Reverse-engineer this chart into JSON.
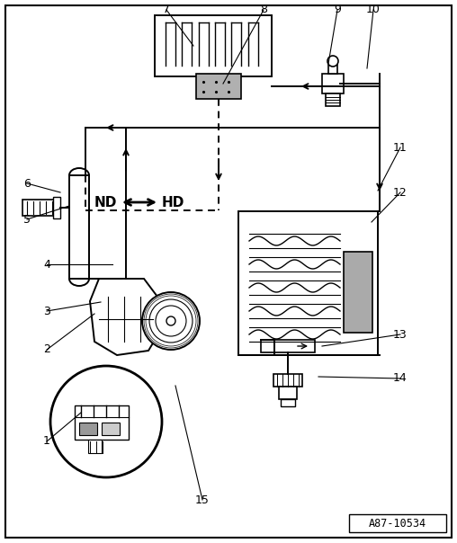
{
  "bg_color": "#ffffff",
  "border_color": "#000000",
  "fig_width": 5.08,
  "fig_height": 6.04,
  "dpi": 100,
  "watermark": "A87-10534",
  "line_color": "#000000",
  "gray_color": "#aaaaaa",
  "light_gray": "#cccccc"
}
